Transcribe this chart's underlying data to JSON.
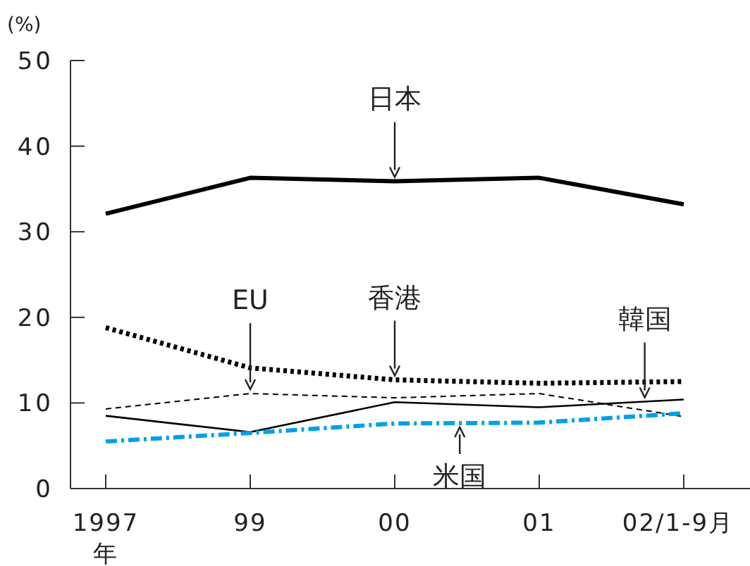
{
  "chart_data": {
    "type": "line",
    "ylabel": "(%)",
    "categories": [
      "1997\n年",
      "99",
      "00",
      "01",
      "02/1-9月"
    ],
    "ylim": [
      0,
      50
    ],
    "yticks": [
      0,
      10,
      20,
      30,
      40,
      50
    ],
    "grid": false,
    "series": [
      {
        "name": "日本",
        "color": "#000000",
        "line_style": "solid",
        "values": [
          32.1,
          36.3,
          35.9,
          36.3,
          33.2
        ]
      },
      {
        "name": "香港",
        "color": "#000000",
        "line_style": "dotted",
        "values": [
          18.8,
          14.1,
          12.7,
          12.3,
          12.5
        ]
      },
      {
        "name": "EU",
        "color": "#000000",
        "line_style": "dashed",
        "values": [
          9.3,
          11.1,
          10.6,
          11.1,
          8.4
        ]
      },
      {
        "name": "韓国",
        "color": "#000000",
        "line_style": "solid",
        "values": [
          8.5,
          6.6,
          10.1,
          9.5,
          10.4
        ]
      },
      {
        "name": "米国",
        "color": "#00a0e9",
        "line_style": "dashdot",
        "values": [
          5.5,
          6.5,
          7.6,
          7.7,
          8.8
        ]
      }
    ]
  }
}
